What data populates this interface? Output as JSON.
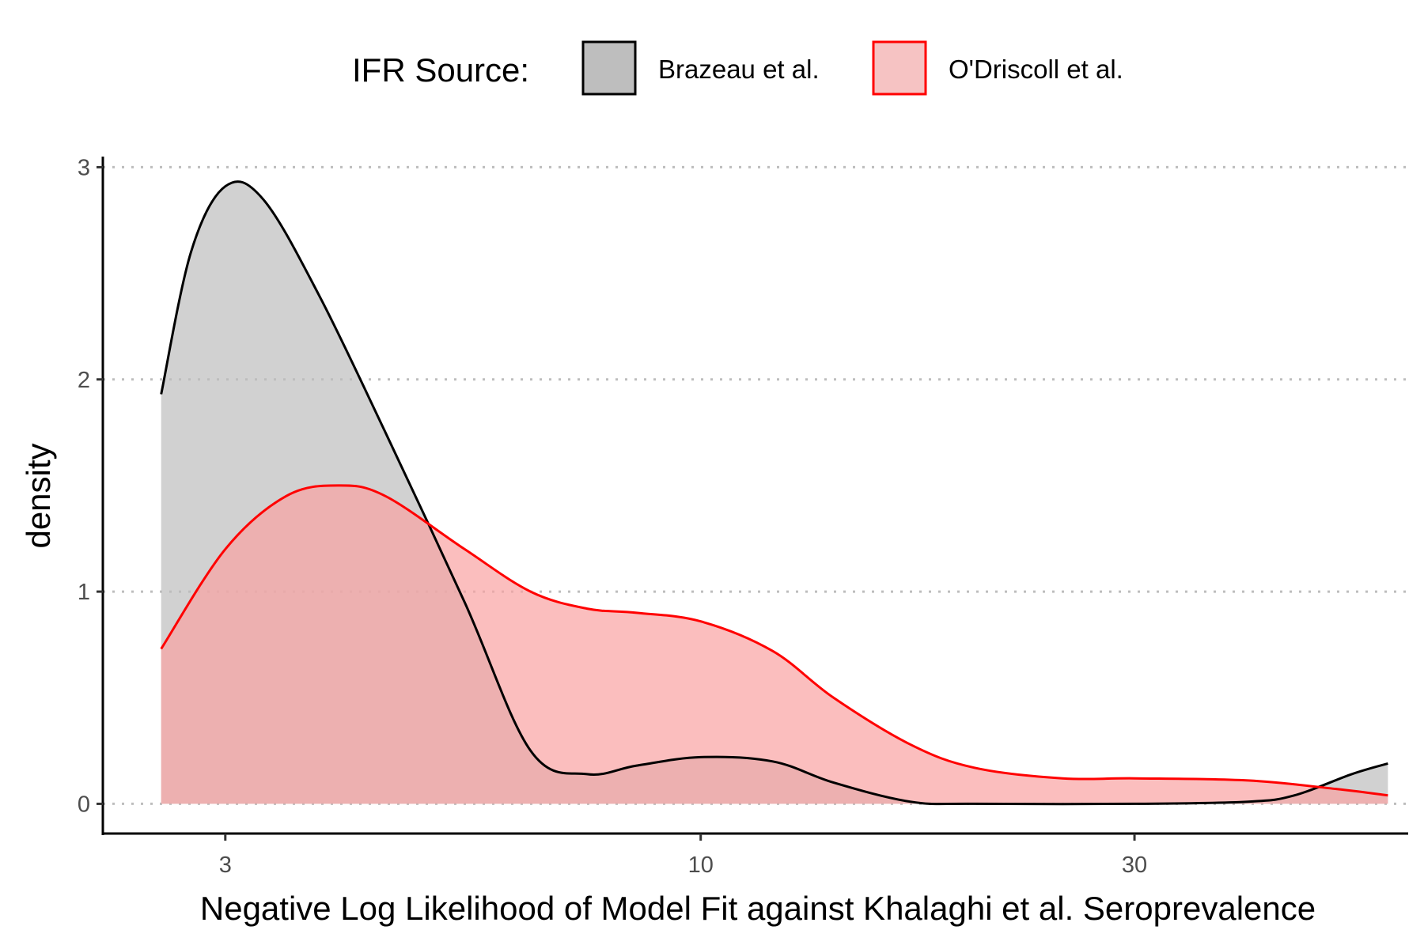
{
  "chart_data": {
    "type": "area",
    "xlabel": "Negative Log Likelihood of Model Fit against Khalaghi et al. Seroprevalence",
    "ylabel": "density",
    "x_scale": "log10",
    "xlim": [
      2.2,
      60
    ],
    "ylim": [
      -0.14,
      3.05
    ],
    "x_ticks": [
      3,
      10,
      30
    ],
    "x_tick_labels": [
      "3",
      "10",
      "30"
    ],
    "y_ticks": [
      0,
      1,
      2,
      3
    ],
    "y_tick_labels": [
      "0",
      "1",
      "2",
      "3"
    ],
    "grid": "horizontal dotted",
    "legend": {
      "title": "IFR Source:",
      "position": "top",
      "entries": [
        "Brazeau et al.",
        "O'Driscoll et al."
      ]
    },
    "colors": {
      "brazeau_fill": "#bebebe",
      "brazeau_line": "#000000",
      "odriscoll_fill": "#f9a3a3",
      "odriscoll_line": "#ff0000",
      "grid": "#bdbdbd",
      "tick_text": "#4d4d4d"
    },
    "series": [
      {
        "name": "Brazeau et al.",
        "x": [
          2.55,
          2.75,
          3.0,
          3.3,
          3.8,
          4.5,
          5.5,
          6.5,
          7.5,
          8.5,
          10.0,
          12.0,
          14.0,
          17.0,
          20.0,
          30.0,
          40.0,
          45.0,
          52.0,
          57.0
        ],
        "y": [
          1.93,
          2.6,
          2.91,
          2.85,
          2.4,
          1.75,
          0.95,
          0.25,
          0.14,
          0.18,
          0.22,
          0.2,
          0.1,
          0.01,
          0.0,
          0.0,
          0.01,
          0.04,
          0.14,
          0.19
        ]
      },
      {
        "name": "O'Driscoll et al.",
        "x": [
          2.55,
          3.0,
          3.5,
          4.0,
          4.5,
          5.5,
          6.5,
          7.5,
          8.5,
          10.0,
          12.0,
          14.0,
          17.0,
          20.0,
          25.0,
          30.0,
          40.0,
          50.0,
          57.0
        ],
        "y": [
          0.73,
          1.2,
          1.45,
          1.5,
          1.45,
          1.2,
          1.0,
          0.92,
          0.9,
          0.86,
          0.72,
          0.5,
          0.28,
          0.17,
          0.12,
          0.12,
          0.11,
          0.07,
          0.04
        ]
      }
    ]
  }
}
